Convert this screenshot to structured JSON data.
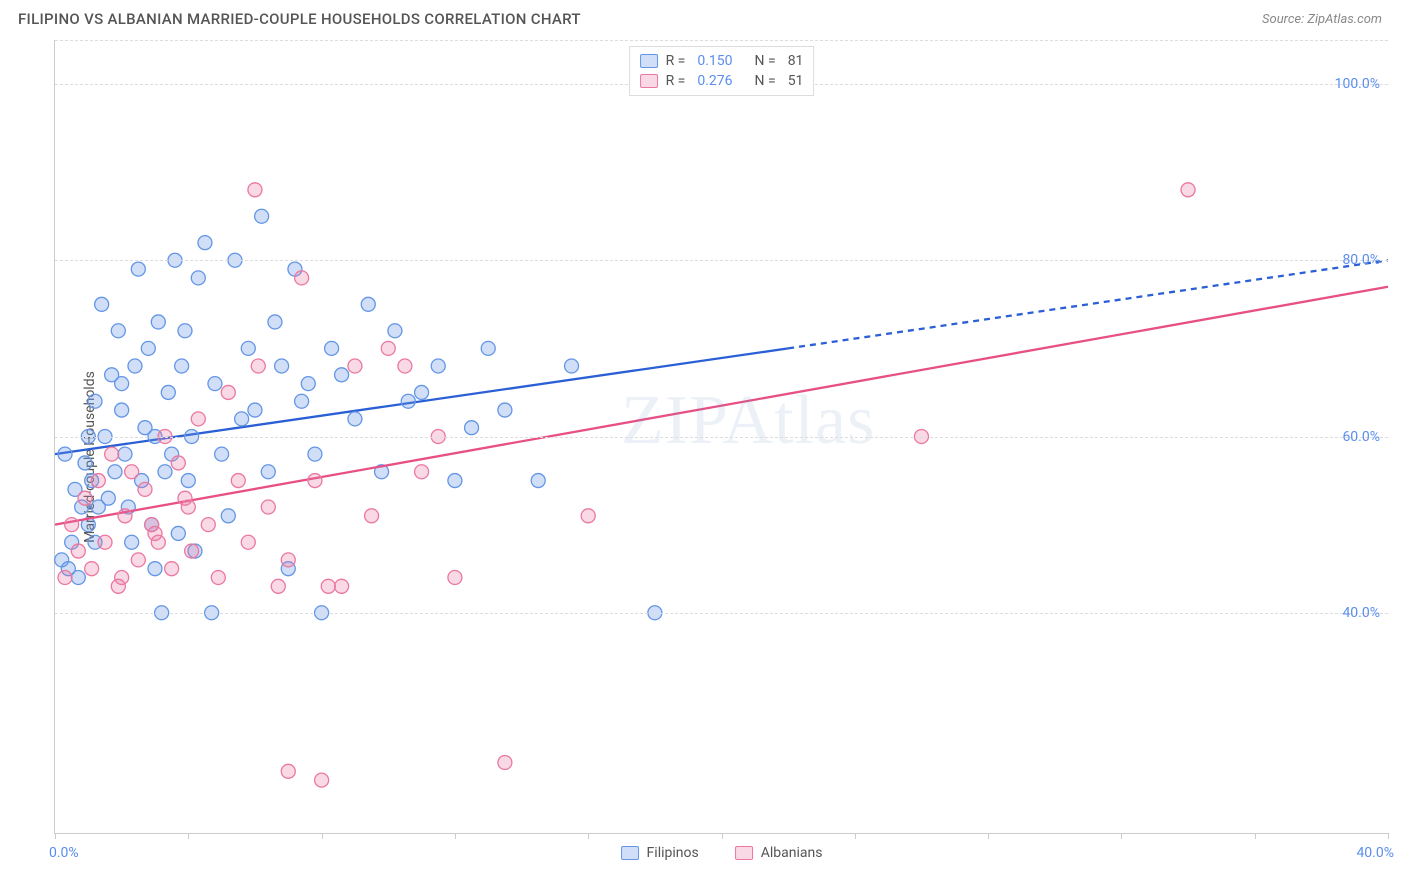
{
  "title": "FILIPINO VS ALBANIAN MARRIED-COUPLE HOUSEHOLDS CORRELATION CHART",
  "source": "Source: ZipAtlas.com",
  "watermark": "ZIPAtlas",
  "ylabel": "Married-couple Households",
  "chart": {
    "type": "scatter",
    "xlim": [
      0,
      40
    ],
    "ylim": [
      15,
      105
    ],
    "x_ticks": [
      0,
      4,
      8,
      12,
      16,
      20,
      24,
      28,
      32,
      36,
      40
    ],
    "x_tick_labels_shown": {
      "0": "0.0%",
      "40": "40.0%"
    },
    "y_gridlines": [
      40,
      60,
      80,
      100
    ],
    "y_tick_labels": {
      "40": "40.0%",
      "60": "60.0%",
      "80": "80.0%",
      "100": "100.0%"
    },
    "grid_color": "#dddddd",
    "axis_color": "#cccccc",
    "tick_label_color": "#5b8def",
    "marker_radius": 7,
    "marker_stroke_width": 1.3,
    "line_width": 2.3,
    "series": [
      {
        "name": "Filipinos",
        "color_fill": "rgba(100,150,230,0.30)",
        "color_stroke": "#6496e6",
        "line_color": "#2a5fd6",
        "r_value": "0.150",
        "n_value": "81",
        "trend": {
          "x0": 0,
          "y0": 58,
          "x1": 22,
          "y1": 70,
          "x2_dashed": 40,
          "y2_dashed": 80
        },
        "points": [
          [
            0.3,
            58
          ],
          [
            0.4,
            45
          ],
          [
            0.5,
            48
          ],
          [
            0.6,
            54
          ],
          [
            0.7,
            44
          ],
          [
            0.8,
            52
          ],
          [
            0.9,
            57
          ],
          [
            1.0,
            60
          ],
          [
            1.1,
            55
          ],
          [
            1.2,
            48
          ],
          [
            1.2,
            64
          ],
          [
            1.3,
            52
          ],
          [
            1.4,
            75
          ],
          [
            1.5,
            60
          ],
          [
            1.6,
            53
          ],
          [
            1.7,
            67
          ],
          [
            1.8,
            56
          ],
          [
            1.9,
            72
          ],
          [
            2.0,
            63
          ],
          [
            2.1,
            58
          ],
          [
            2.2,
            52
          ],
          [
            2.3,
            48
          ],
          [
            2.4,
            68
          ],
          [
            2.5,
            79
          ],
          [
            2.6,
            55
          ],
          [
            2.7,
            61
          ],
          [
            2.8,
            70
          ],
          [
            2.9,
            50
          ],
          [
            3.0,
            45
          ],
          [
            3.1,
            73
          ],
          [
            3.2,
            40
          ],
          [
            3.3,
            56
          ],
          [
            3.4,
            65
          ],
          [
            3.5,
            58
          ],
          [
            3.6,
            80
          ],
          [
            3.7,
            49
          ],
          [
            3.8,
            68
          ],
          [
            3.9,
            72
          ],
          [
            4.0,
            55
          ],
          [
            4.1,
            60
          ],
          [
            4.2,
            47
          ],
          [
            4.3,
            78
          ],
          [
            4.5,
            82
          ],
          [
            4.7,
            40
          ],
          [
            4.8,
            66
          ],
          [
            5.0,
            58
          ],
          [
            5.2,
            51
          ],
          [
            5.4,
            80
          ],
          [
            5.6,
            62
          ],
          [
            5.8,
            70
          ],
          [
            6.0,
            63
          ],
          [
            6.2,
            85
          ],
          [
            6.4,
            56
          ],
          [
            6.6,
            73
          ],
          [
            6.8,
            68
          ],
          [
            7.0,
            45
          ],
          [
            7.2,
            79
          ],
          [
            7.4,
            64
          ],
          [
            7.6,
            66
          ],
          [
            7.8,
            58
          ],
          [
            8.0,
            40
          ],
          [
            8.3,
            70
          ],
          [
            8.6,
            67
          ],
          [
            9.0,
            62
          ],
          [
            9.4,
            75
          ],
          [
            9.8,
            56
          ],
          [
            10.2,
            72
          ],
          [
            10.6,
            64
          ],
          [
            11.0,
            65
          ],
          [
            11.5,
            68
          ],
          [
            12.0,
            55
          ],
          [
            12.5,
            61
          ],
          [
            13.0,
            70
          ],
          [
            13.5,
            63
          ],
          [
            14.5,
            55
          ],
          [
            15.5,
            68
          ],
          [
            18.0,
            40
          ],
          [
            0.2,
            46
          ],
          [
            1.0,
            50
          ],
          [
            2.0,
            66
          ],
          [
            3.0,
            60
          ]
        ]
      },
      {
        "name": "Albanians",
        "color_fill": "rgba(235,120,160,0.28)",
        "color_stroke": "#eb78a0",
        "line_color": "#e84f85",
        "r_value": "0.276",
        "n_value": "51",
        "trend": {
          "x0": 0,
          "y0": 50,
          "x1": 40,
          "y1": 77
        },
        "points": [
          [
            0.3,
            44
          ],
          [
            0.5,
            50
          ],
          [
            0.7,
            47
          ],
          [
            0.9,
            53
          ],
          [
            1.1,
            45
          ],
          [
            1.3,
            55
          ],
          [
            1.5,
            48
          ],
          [
            1.7,
            58
          ],
          [
            1.9,
            43
          ],
          [
            2.1,
            51
          ],
          [
            2.3,
            56
          ],
          [
            2.5,
            46
          ],
          [
            2.7,
            54
          ],
          [
            2.9,
            50
          ],
          [
            3.1,
            48
          ],
          [
            3.3,
            60
          ],
          [
            3.5,
            45
          ],
          [
            3.7,
            57
          ],
          [
            3.9,
            53
          ],
          [
            4.1,
            47
          ],
          [
            4.3,
            62
          ],
          [
            4.6,
            50
          ],
          [
            4.9,
            44
          ],
          [
            5.2,
            65
          ],
          [
            5.5,
            55
          ],
          [
            5.8,
            48
          ],
          [
            6.1,
            68
          ],
          [
            6.4,
            52
          ],
          [
            6.7,
            43
          ],
          [
            7.0,
            46
          ],
          [
            7.4,
            78
          ],
          [
            7.8,
            55
          ],
          [
            8.2,
            43
          ],
          [
            8.6,
            43
          ],
          [
            9.0,
            68
          ],
          [
            9.5,
            51
          ],
          [
            10.0,
            70
          ],
          [
            10.5,
            68
          ],
          [
            11.0,
            56
          ],
          [
            11.5,
            60
          ],
          [
            12.0,
            44
          ],
          [
            6.0,
            88
          ],
          [
            7.0,
            22
          ],
          [
            8.0,
            21
          ],
          [
            13.5,
            23
          ],
          [
            16.0,
            51
          ],
          [
            26.0,
            60
          ],
          [
            34.0,
            88
          ],
          [
            2.0,
            44
          ],
          [
            3.0,
            49
          ],
          [
            4.0,
            52
          ]
        ]
      }
    ]
  },
  "legend_top": {
    "r_label": "R =",
    "n_label": "N ="
  },
  "legend_bottom": [
    "Filipinos",
    "Albanians"
  ]
}
